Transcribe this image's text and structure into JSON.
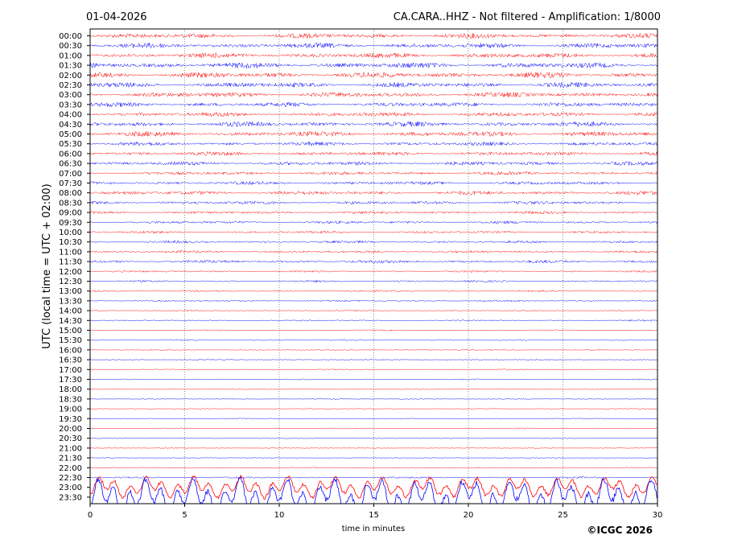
{
  "header": {
    "date": "01-04-2026",
    "station_info": "CA.CARA..HHZ - Not filtered - Amplification: 1/8000"
  },
  "footer": {
    "copyright": "©ICGC 2026"
  },
  "chart_data": {
    "type": "line",
    "xlabel": "time in minutes",
    "ylabel": "UTC (local time = UTC + 02:00)",
    "xlim": [
      0,
      30
    ],
    "x_ticks": [
      "0",
      "5",
      "10",
      "15",
      "20",
      "25",
      "30"
    ],
    "x_tick_values": [
      0,
      5,
      10,
      15,
      20,
      25,
      30
    ],
    "grid": "vertical dotted at x ticks",
    "row_labels": [
      "00:00",
      "00:30",
      "01:00",
      "01:30",
      "02:00",
      "02:30",
      "03:00",
      "03:30",
      "04:00",
      "04:30",
      "05:00",
      "05:30",
      "06:00",
      "06:30",
      "07:00",
      "07:30",
      "08:00",
      "08:30",
      "09:00",
      "09:30",
      "10:00",
      "10:30",
      "11:00",
      "11:30",
      "12:00",
      "12:30",
      "13:00",
      "13:30",
      "14:00",
      "14:30",
      "15:00",
      "15:30",
      "16:00",
      "16:30",
      "17:00",
      "17:30",
      "18:00",
      "18:30",
      "19:00",
      "19:30",
      "20:00",
      "20:30",
      "21:00",
      "21:30",
      "22:00",
      "22:30",
      "23:00",
      "23:30"
    ],
    "series_colors": [
      "#ff0000",
      "#0000ff"
    ],
    "relative_amplitude_by_row": [
      0.9,
      0.9,
      0.9,
      1.0,
      1.0,
      0.9,
      0.9,
      0.8,
      0.8,
      0.9,
      0.9,
      0.7,
      0.7,
      0.7,
      0.6,
      0.6,
      0.7,
      0.6,
      0.5,
      0.5,
      0.45,
      0.45,
      0.45,
      0.55,
      0.35,
      0.35,
      0.3,
      0.3,
      0.25,
      0.25,
      0.22,
      0.22,
      0.22,
      0.2,
      0.2,
      0.2,
      0.18,
      0.18,
      0.18,
      0.18,
      0.2,
      0.2,
      0.18,
      0.18,
      0.18,
      0.3,
      2.0,
      3.5
    ]
  }
}
